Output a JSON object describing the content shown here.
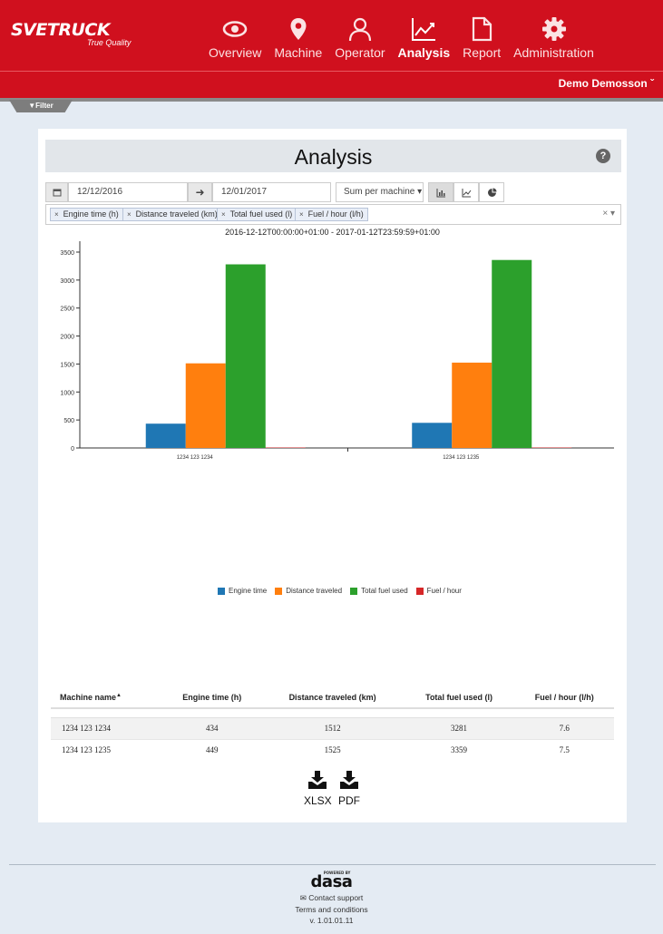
{
  "header": {
    "brand": "SVETRUCK",
    "tagline": "True Quality",
    "nav": [
      {
        "label": "Overview",
        "icon": "eye-icon"
      },
      {
        "label": "Machine",
        "icon": "map-pin-icon"
      },
      {
        "label": "Operator",
        "icon": "person-icon"
      },
      {
        "label": "Analysis",
        "icon": "line-chart-icon",
        "active": true
      },
      {
        "label": "Report",
        "icon": "document-icon"
      },
      {
        "label": "Administration",
        "icon": "gear-icon"
      }
    ],
    "user": "Demo Demosson ˇ",
    "filter_tab": "Filter"
  },
  "panel": {
    "title": "Analysis",
    "help": "?",
    "date_from": "12/12/2016",
    "date_to": "12/01/2017",
    "aggregate": "Sum per machine ▾",
    "arrow": "➜",
    "clear": "× ▾",
    "tags": [
      "Engine time (h)",
      "Distance traveled (km)",
      "Total fuel used (l)",
      "Fuel / hour (l/h)"
    ],
    "date_range": "2016-12-12T00:00:00+01:00 - 2017-01-12T23:59:59+01:00"
  },
  "chart_data": {
    "type": "bar",
    "categories": [
      "1234 123 1234",
      "1234 123 1235"
    ],
    "series": [
      {
        "name": "Engine time",
        "values": [
          434,
          449
        ],
        "color": "#1f77b4"
      },
      {
        "name": "Distance traveled",
        "values": [
          1512,
          1525
        ],
        "color": "#ff7f0e"
      },
      {
        "name": "Total fuel used",
        "values": [
          3281,
          3359
        ],
        "color": "#2ca02c"
      },
      {
        "name": "Fuel / hour",
        "values": [
          7.6,
          7.5
        ],
        "color": "#d62728"
      }
    ],
    "yticks": [
      0,
      500,
      1000,
      1500,
      2000,
      2500,
      3000,
      3500
    ],
    "ylim": [
      0,
      3500
    ],
    "legend": "bottom"
  },
  "table": {
    "headers": [
      "Machine name",
      "Engine time (h)",
      "Distance traveled (km)",
      "Total fuel used (l)",
      "Fuel / hour (l/h)"
    ],
    "sort_indicator": "▲",
    "rows": [
      [
        "1234 123 1234",
        "434",
        "1512",
        "3281",
        "7.6"
      ],
      [
        "1234 123 1235",
        "449",
        "1525",
        "3359",
        "7.5"
      ]
    ]
  },
  "downloads": [
    {
      "label": "XLSX",
      "icon": "download-icon"
    },
    {
      "label": "PDF",
      "icon": "download-icon"
    }
  ],
  "footer": {
    "logo": "dasa",
    "powered": "POWERED BY",
    "contact": "Contact support",
    "terms": "Terms and conditions",
    "version": "v. 1.01.01.11"
  }
}
